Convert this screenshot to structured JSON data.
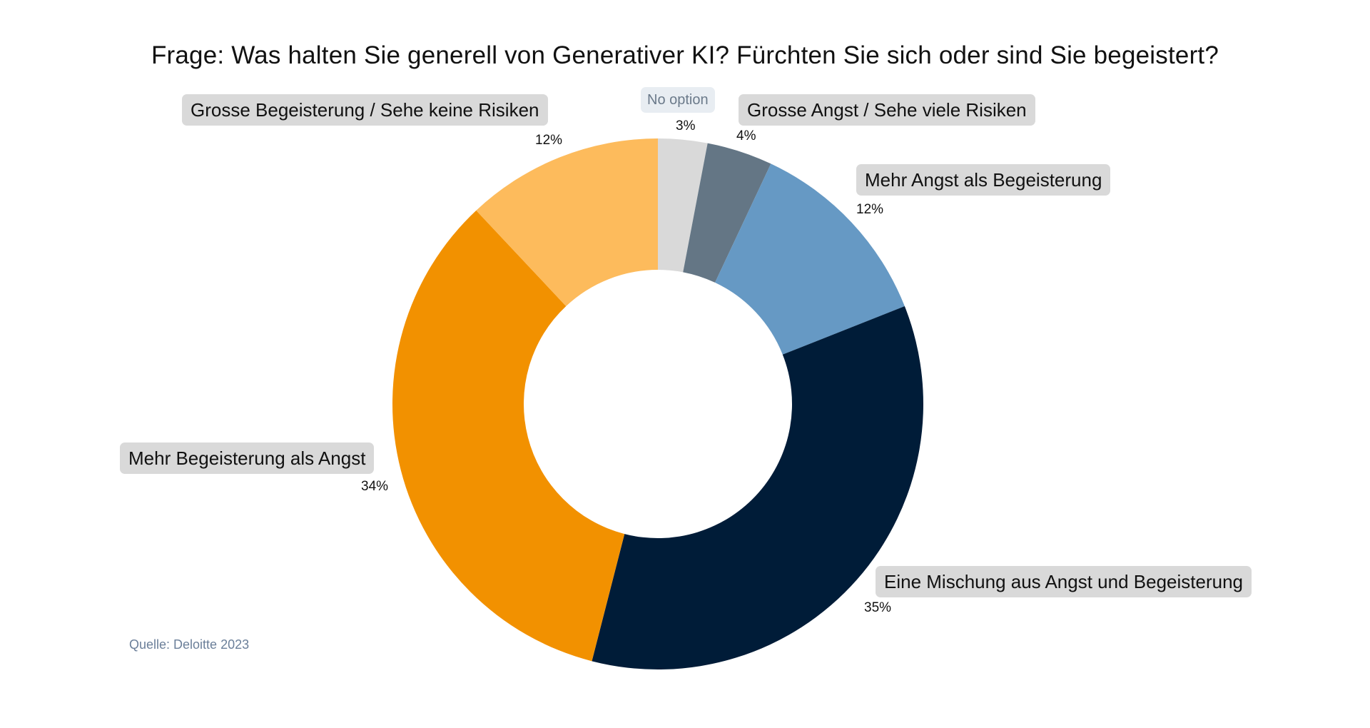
{
  "title": "Frage: Was halten Sie generell von Generativer KI? Fürchten Sie sich oder sind Sie begeistert?",
  "source": "Quelle: Deloitte 2023",
  "chart_data": {
    "type": "pie",
    "variant": "donut",
    "title": "Frage: Was halten Sie generell von Generativer KI? Fürchten Sie sich oder sind Sie begeistert?",
    "slices": [
      {
        "label": "No option",
        "value": 3,
        "display": "3%",
        "color": "#d9d9d9"
      },
      {
        "label": "Grosse Angst / Sehe viele Risiken",
        "value": 4,
        "display": "4%",
        "color": "#647685"
      },
      {
        "label": "Mehr Angst als Begeisterung",
        "value": 12,
        "display": "12%",
        "color": "#6699c4"
      },
      {
        "label": "Eine Mischung aus Angst  und  Begeisterung",
        "value": 35,
        "display": "35%",
        "color": "#001c38"
      },
      {
        "label": "Mehr Begeisterung als Angst",
        "value": 34,
        "display": "34%",
        "color": "#f29100"
      },
      {
        "label": "Grosse Begeisterung / Sehe keine Risiken",
        "value": 12,
        "display": "12%",
        "color": "#fdbb5c"
      }
    ]
  }
}
